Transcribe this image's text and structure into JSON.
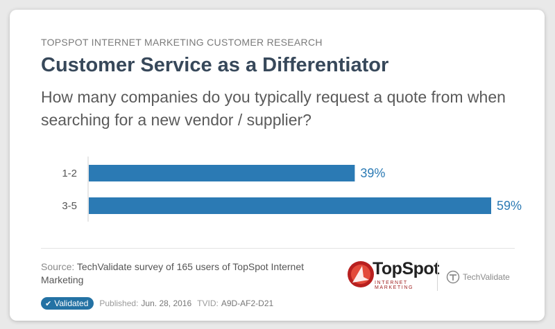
{
  "header": {
    "kicker": "TOPSPOT INTERNET MARKETING CUSTOMER RESEARCH",
    "title": "Customer Service as a Differentiator",
    "question": "How many companies do you typically request a quote from when searching for a new vendor / supplier?"
  },
  "chart_data": {
    "type": "bar",
    "orientation": "horizontal",
    "categories": [
      "1-2",
      "3-5"
    ],
    "values": [
      39,
      59
    ],
    "value_labels": [
      "39%",
      "59%"
    ],
    "bar_color": "#2b7ab4",
    "value_label_color": "#2b7ab4",
    "xlim": [
      0,
      100
    ],
    "grid": false,
    "legend": "none"
  },
  "source": {
    "label": "Source:",
    "text": "TechValidate survey of 165 users of TopSpot Internet Marketing"
  },
  "footer": {
    "badge": "Validated",
    "published_label": "Published:",
    "published_value": "Jun. 28, 2016",
    "tvid_label": "TVID:",
    "tvid_value": "A9D-AF2-D21"
  },
  "logos": {
    "topspot_word": "TopSpot",
    "topspot_sub": "INTERNET MARKETING",
    "techvalidate_word": "TechValidate"
  },
  "colors": {
    "accent": "#2472a4",
    "title": "#37485a",
    "topspot_red": "#b8201f"
  }
}
